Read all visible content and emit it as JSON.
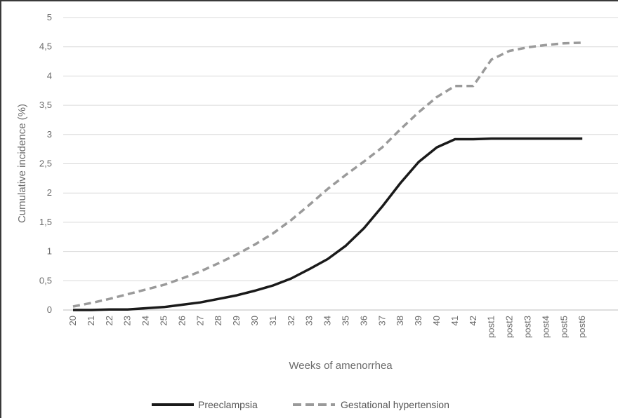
{
  "chart_data": {
    "type": "line",
    "xlabel": "Weeks of amenorrhea",
    "ylabel": "Cumulative incidence (%)",
    "ylim": [
      0,
      5
    ],
    "y_ticks": [
      "0",
      "0,5",
      "1",
      "1,5",
      "2",
      "2,5",
      "3",
      "3,5",
      "4",
      "4,5",
      "5"
    ],
    "grid": "horizontal",
    "legend_position": "bottom",
    "categories": [
      "20",
      "21",
      "22",
      "23",
      "24",
      "25",
      "26",
      "27",
      "28",
      "29",
      "30",
      "31",
      "32",
      "33",
      "34",
      "35",
      "36",
      "37",
      "38",
      "39",
      "40",
      "41",
      "42",
      "post1",
      "post2",
      "post3",
      "post4",
      "post5",
      "post6"
    ],
    "series": [
      {
        "name": "Preeclampsia",
        "color": "#1a1a1a",
        "dash": "solid",
        "values": [
          0,
          0,
          0.01,
          0.01,
          0.03,
          0.05,
          0.09,
          0.13,
          0.19,
          0.25,
          0.33,
          0.42,
          0.54,
          0.7,
          0.87,
          1.1,
          1.4,
          1.77,
          2.17,
          2.53,
          2.78,
          2.92,
          2.92,
          2.93,
          2.93,
          2.93,
          2.93,
          2.93,
          2.93
        ]
      },
      {
        "name": "Gestational hypertension",
        "color": "#9a9a9a",
        "dash": "dashed",
        "values": [
          0.06,
          0.12,
          0.19,
          0.27,
          0.35,
          0.43,
          0.54,
          0.66,
          0.8,
          0.95,
          1.12,
          1.31,
          1.54,
          1.8,
          2.07,
          2.31,
          2.54,
          2.78,
          3.09,
          3.38,
          3.64,
          3.83,
          3.83,
          4.28,
          4.43,
          4.49,
          4.53,
          4.56,
          4.57
        ]
      }
    ]
  }
}
